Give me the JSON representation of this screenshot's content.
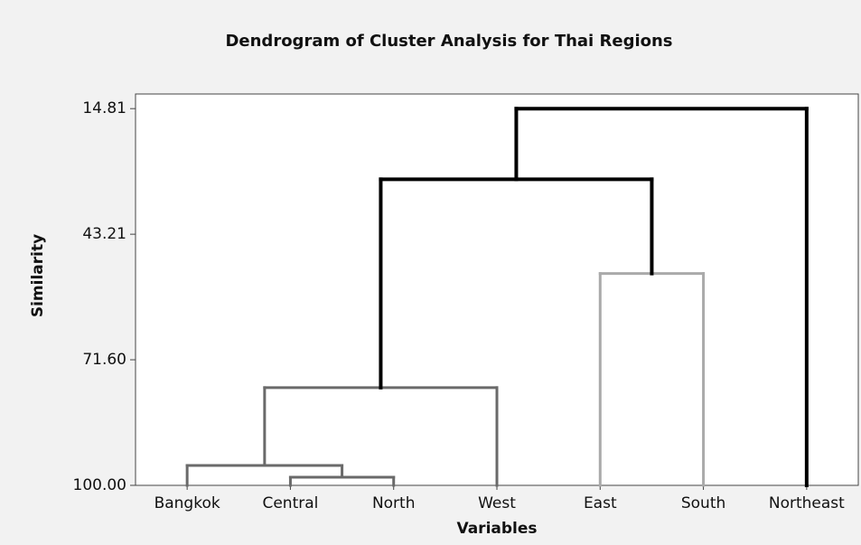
{
  "chart_data": {
    "type": "dendrogram",
    "title": "Dendrogram of Cluster Analysis for Thai Regions",
    "xlabel": "Variables",
    "ylabel": "Similarity",
    "categories": [
      "Bangkok",
      "Central",
      "North",
      "West",
      "East",
      "South",
      "Northeast"
    ],
    "merges": [
      {
        "left": 1,
        "right": 2,
        "height": 98.16,
        "color": "#6a6a6a"
      },
      {
        "left": 0,
        "right": 7,
        "height": 95.5,
        "color": "#6a6a6a"
      },
      {
        "left": 8,
        "right": 3,
        "height": 77.9,
        "color": "#6a6a6a"
      },
      {
        "left": 4,
        "right": 5,
        "height": 52.1,
        "color": "#aaaaaa"
      },
      {
        "left": 9,
        "right": 10,
        "height": 30.8,
        "color": "#000000"
      },
      {
        "left": 11,
        "right": 6,
        "height": 14.81,
        "color": "#000000"
      }
    ],
    "ylim": [
      100,
      11.5
    ],
    "yticks": [
      {
        "value": 14.81,
        "label": "14.81"
      },
      {
        "value": 43.21,
        "label": "43.21"
      },
      {
        "value": 71.6,
        "label": "71.60"
      },
      {
        "value": 100,
        "label": "100.00"
      }
    ]
  }
}
